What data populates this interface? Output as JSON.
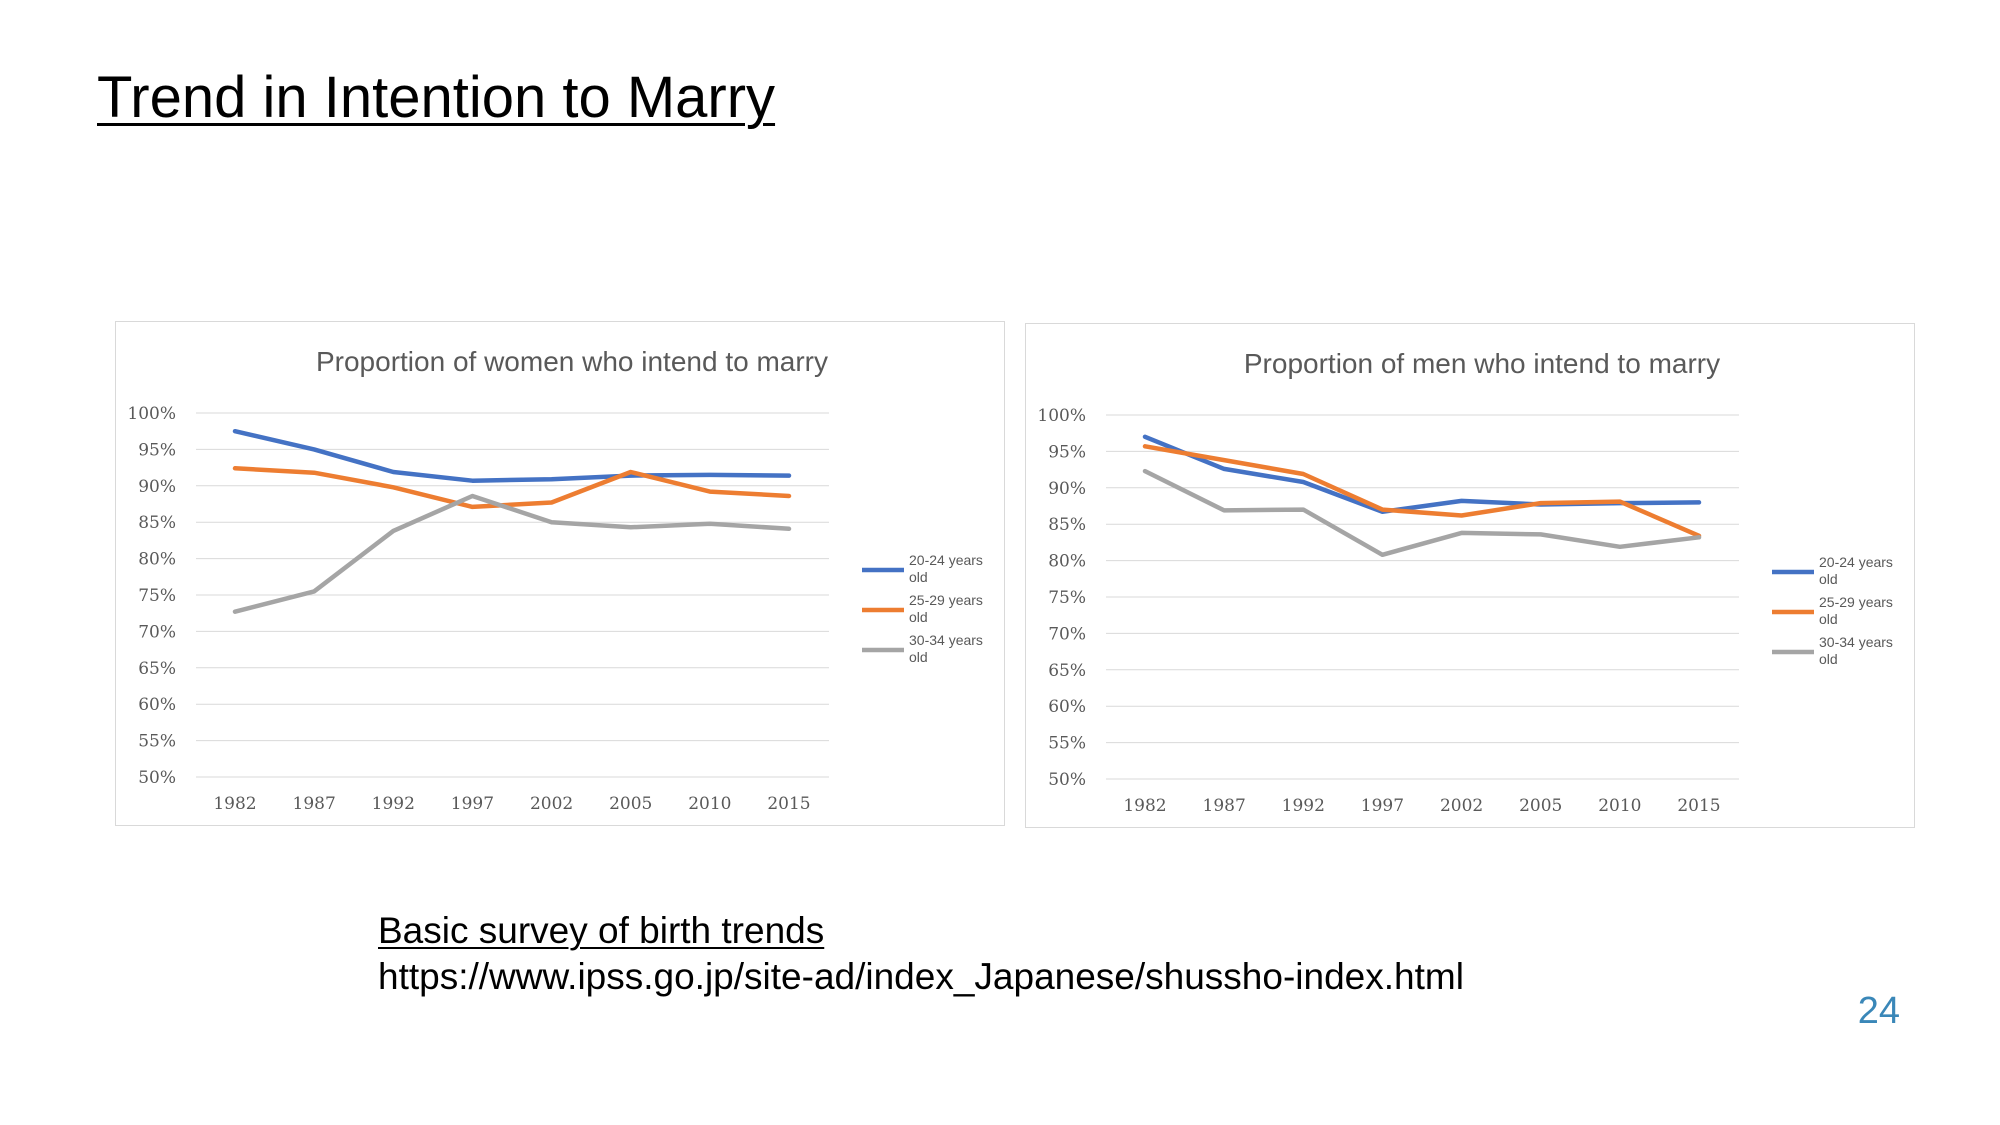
{
  "slide": {
    "title": "Trend in Intention to Marry",
    "source_title": "Basic survey of birth trends",
    "source_url": "https://www.ipss.go.jp/site-ad/index_Japanese/shussho-index.html",
    "page_number": "24",
    "page_number_color": "#3a87b8"
  },
  "chart_data": [
    {
      "type": "line",
      "title": "Proportion of women who intend to marry",
      "categories": [
        "1982",
        "1987",
        "1992",
        "1997",
        "2002",
        "2005",
        "2010",
        "2015"
      ],
      "ylim": [
        50,
        100
      ],
      "yticks": [
        "100%",
        "95%",
        "90%",
        "85%",
        "80%",
        "75%",
        "70%",
        "65%",
        "60%",
        "55%",
        "50%"
      ],
      "grid": true,
      "legend_position": "right",
      "series": [
        {
          "name": "20-24 years old",
          "color": "#4472c4",
          "values": [
            97.5,
            95.0,
            91.9,
            90.7,
            90.9,
            91.4,
            91.5,
            91.4
          ]
        },
        {
          "name": "25-29 years old",
          "color": "#ed7d31",
          "values": [
            92.4,
            91.8,
            89.8,
            87.1,
            87.7,
            91.9,
            89.2,
            88.6
          ]
        },
        {
          "name": "30-34 years old",
          "color": "#a5a5a5",
          "values": [
            72.7,
            75.5,
            83.8,
            88.6,
            85.0,
            84.3,
            84.8,
            84.1
          ]
        }
      ]
    },
    {
      "type": "line",
      "title": "Proportion of men who intend to marry",
      "categories": [
        "1982",
        "1987",
        "1992",
        "1997",
        "2002",
        "2005",
        "2010",
        "2015"
      ],
      "ylim": [
        50,
        100
      ],
      "yticks": [
        "100%",
        "95%",
        "90%",
        "85%",
        "80%",
        "75%",
        "70%",
        "65%",
        "60%",
        "55%",
        "50%"
      ],
      "grid": true,
      "legend_position": "right",
      "series": [
        {
          "name": "20-24 years old",
          "color": "#4472c4",
          "values": [
            97.0,
            92.6,
            90.8,
            86.7,
            88.2,
            87.7,
            87.9,
            88.0
          ]
        },
        {
          "name": "25-29 years old",
          "color": "#ed7d31",
          "values": [
            95.7,
            93.8,
            91.9,
            87.0,
            86.2,
            87.9,
            88.1,
            83.4
          ]
        },
        {
          "name": "30-34 years old",
          "color": "#a5a5a5",
          "values": [
            92.3,
            86.9,
            87.0,
            80.8,
            83.8,
            83.6,
            81.9,
            83.2
          ]
        }
      ]
    }
  ]
}
